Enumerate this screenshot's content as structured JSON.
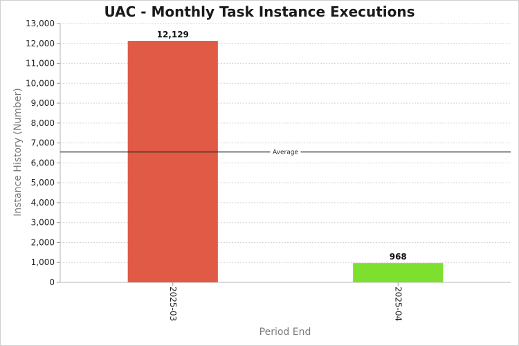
{
  "chart_data": {
    "type": "bar",
    "title": "UAC - Monthly Task Instance Executions",
    "xlabel": "Period End",
    "ylabel": "Instance History (Number)",
    "categories": [
      "2025-03",
      "2025-04"
    ],
    "values": [
      12129,
      968
    ],
    "data_labels": [
      "12,129",
      "968"
    ],
    "bar_colors": [
      "#e05a46",
      "#7de02e"
    ],
    "ylim": [
      0,
      13000
    ],
    "yticks": [
      0,
      1000,
      2000,
      3000,
      4000,
      5000,
      6000,
      7000,
      8000,
      9000,
      10000,
      11000,
      12000,
      13000
    ],
    "ytick_labels": [
      "0",
      "1,000",
      "2,000",
      "3,000",
      "4,000",
      "5,000",
      "6,000",
      "7,000",
      "8,000",
      "9,000",
      "10,000",
      "11,000",
      "12,000",
      "13,000"
    ],
    "average": {
      "label": "Average",
      "value": 6548.5,
      "color": "#222222"
    },
    "grid": true,
    "grid_style": "dotted",
    "legend": "none"
  }
}
